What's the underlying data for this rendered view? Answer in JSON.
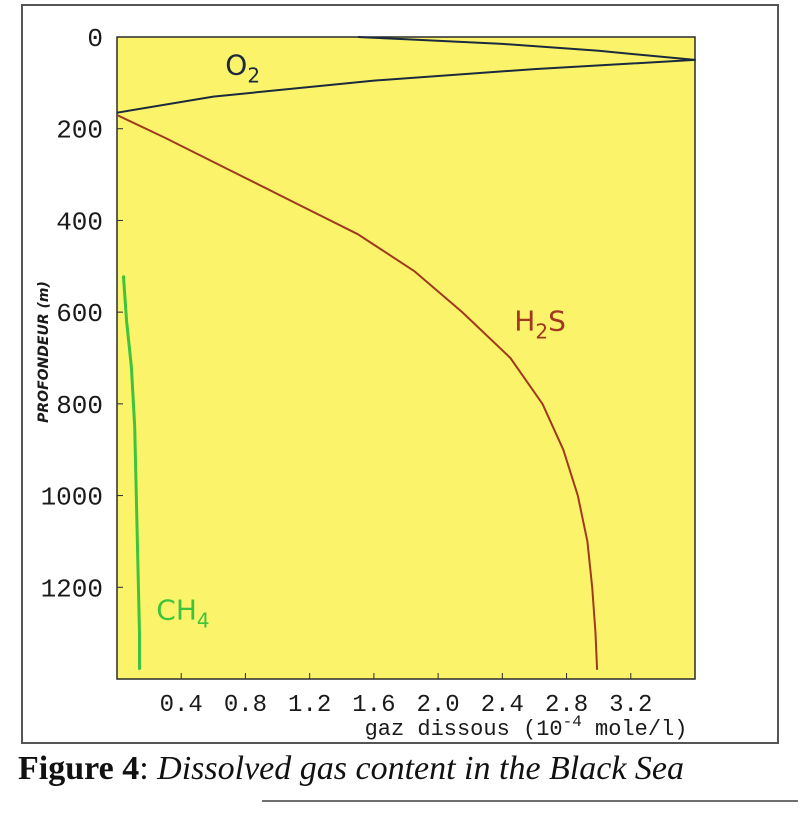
{
  "chart_data": {
    "type": "line",
    "xlabel": "gaz dissous (10",
    "xlabel_exp": "-4",
    "xlabel_unit": " mole/l)",
    "ylabel": "PROFONDEUR (m)",
    "xlim": [
      0,
      3.6
    ],
    "ylim": [
      0,
      1400
    ],
    "y_inverted": true,
    "x_ticks": [
      0.4,
      0.8,
      1.2,
      1.6,
      2.0,
      2.4,
      2.8,
      3.2
    ],
    "y_ticks": [
      0,
      200,
      400,
      600,
      800,
      1000,
      1200
    ],
    "background": "#fbf46b",
    "series": [
      {
        "name": "O",
        "name_sub": "2",
        "color": "#1c2a3d",
        "points": [
          [
            0,
            165
          ],
          [
            0.6,
            130
          ],
          [
            1.6,
            95
          ],
          [
            2.6,
            70
          ],
          [
            3.6,
            50
          ],
          [
            3.0,
            30
          ],
          [
            2.4,
            15
          ],
          [
            1.8,
            5
          ],
          [
            1.5,
            0
          ]
        ]
      },
      {
        "name": "H",
        "name_sub": "2",
        "name_suffix": "S",
        "color": "#a0391f",
        "points": [
          [
            0,
            170
          ],
          [
            0.3,
            220
          ],
          [
            0.7,
            290
          ],
          [
            1.1,
            360
          ],
          [
            1.5,
            430
          ],
          [
            1.85,
            510
          ],
          [
            2.15,
            600
          ],
          [
            2.45,
            700
          ],
          [
            2.65,
            800
          ],
          [
            2.78,
            900
          ],
          [
            2.87,
            1000
          ],
          [
            2.93,
            1100
          ],
          [
            2.96,
            1200
          ],
          [
            2.98,
            1300
          ],
          [
            2.99,
            1380
          ]
        ]
      },
      {
        "name": "CH",
        "name_sub": "4",
        "color": "#3ec43b",
        "points": [
          [
            0.04,
            520
          ],
          [
            0.06,
            620
          ],
          [
            0.09,
            720
          ],
          [
            0.11,
            850
          ],
          [
            0.12,
            1000
          ],
          [
            0.13,
            1150
          ],
          [
            0.14,
            1300
          ],
          [
            0.14,
            1380
          ]
        ]
      }
    ]
  },
  "caption": {
    "label": "Figure 4",
    "separator": ": ",
    "text": "Dissolved gas content in the Black Sea"
  }
}
